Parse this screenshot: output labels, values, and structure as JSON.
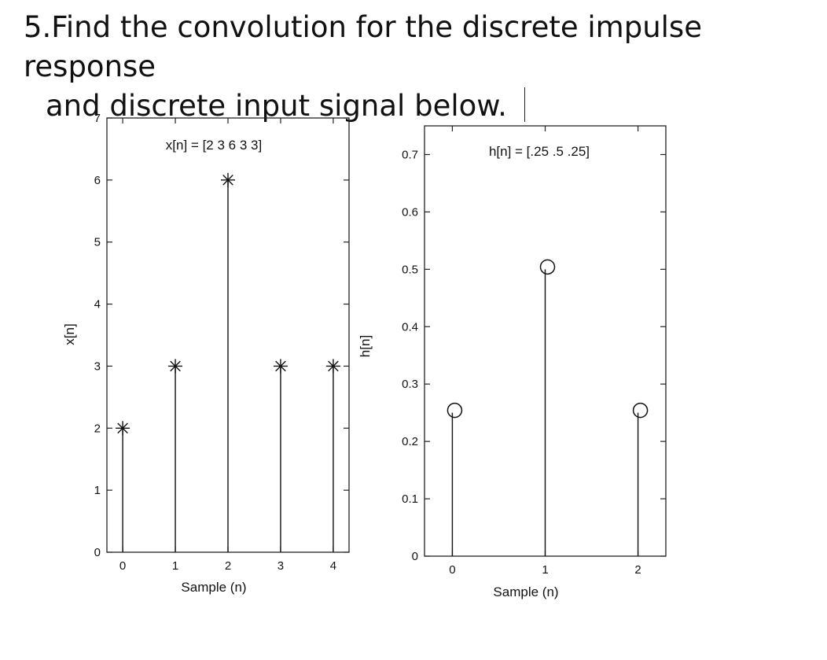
{
  "question": {
    "line1": "5.Find the convolution for the discrete impulse response",
    "line2": "and discrete input signal below."
  },
  "chart_data": [
    {
      "type": "stem",
      "annotation": "x[n] = [2 3 6 3 3]",
      "xlabel": "Sample (n)",
      "ylabel": "x[n]",
      "x": [
        0,
        1,
        2,
        3,
        4
      ],
      "values": [
        2,
        3,
        6,
        3,
        3
      ],
      "marker": "asterisk",
      "xticks": [
        "0",
        "1",
        "2",
        "3",
        "4"
      ],
      "yticks": [
        "0",
        "1",
        "2",
        "3",
        "4",
        "5",
        "6",
        "7"
      ],
      "xlim": [
        -0.3,
        4.3
      ],
      "ylim": [
        0,
        7
      ],
      "grid": false
    },
    {
      "type": "stem",
      "annotation": "h[n] = [.25 .5 .25]",
      "xlabel": "Sample (n)",
      "ylabel": "h[n]",
      "x": [
        0,
        1,
        2
      ],
      "values": [
        0.25,
        0.5,
        0.25
      ],
      "marker": "circle",
      "xticks": [
        "0",
        "1",
        "2"
      ],
      "yticks": [
        "0",
        "0.1",
        "0.2",
        "0.3",
        "0.4",
        "0.5",
        "0.6",
        "0.7"
      ],
      "xlim": [
        -0.3,
        2.3
      ],
      "ylim": [
        0,
        0.75
      ],
      "grid": false
    }
  ]
}
